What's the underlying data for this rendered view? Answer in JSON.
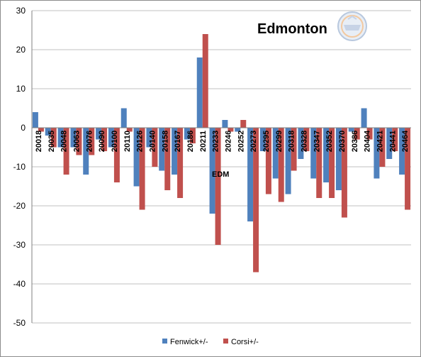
{
  "chart_data": {
    "type": "bar",
    "title": "Edmonton",
    "annotation": "EDM",
    "logo": "oilers-logo",
    "ylim": [
      -50,
      30
    ],
    "yticks": [
      30,
      20,
      10,
      0,
      -10,
      -20,
      -30,
      -40,
      -50
    ],
    "grid": true,
    "legend_position": "bottom",
    "colors": {
      "Fenwick+/-": "#4f81bd",
      "Corsi+/-": "#c0504d",
      "grid": "#c0c0c0"
    },
    "categories": [
      "20018",
      "20035",
      "20048",
      "20063",
      "20076",
      "20090",
      "20100",
      "20110",
      "20126",
      "20140",
      "20158",
      "20167",
      "20186",
      "20211",
      "20233",
      "20246",
      "20252",
      "20273",
      "20295",
      "20299",
      "20318",
      "20328",
      "20347",
      "20352",
      "20370",
      "20386",
      "20404",
      "20421",
      "20441",
      "20464"
    ],
    "series": [
      {
        "name": "Fenwick+/-",
        "values": [
          4,
          -2,
          -5,
          -5,
          -12,
          -3,
          -5,
          5,
          -15,
          -5,
          -11,
          -12,
          -3,
          18,
          -22,
          2,
          -1,
          -24,
          -6,
          -13,
          -17,
          -8,
          -13,
          -14,
          -16,
          -1,
          5,
          -13,
          -8,
          -12
        ]
      },
      {
        "name": "Corsi+/-",
        "values": [
          -1,
          -5,
          -12,
          -7,
          -7,
          -6,
          -14,
          -1,
          -21,
          -10,
          -16,
          -18,
          -4,
          24,
          -30,
          -1,
          2,
          -37,
          -17,
          -19,
          -11,
          -6,
          -18,
          -18,
          -23,
          -3,
          -3,
          -10,
          -6,
          -21
        ]
      }
    ]
  }
}
